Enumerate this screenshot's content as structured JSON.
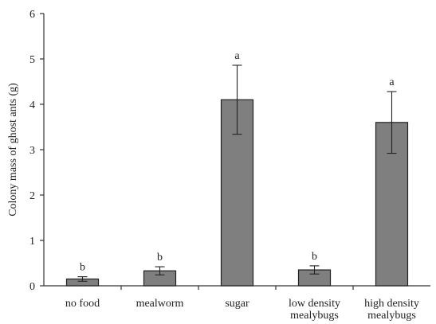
{
  "chart_data": {
    "type": "bar",
    "title": "",
    "xlabel": "",
    "ylabel": "Colony mass of ghost ants (g)",
    "ylim": [
      0,
      6
    ],
    "yticks": [
      "0",
      "1",
      "2",
      "3",
      "4",
      "5",
      "6"
    ],
    "categories": [
      [
        "no food"
      ],
      [
        "mealworm"
      ],
      [
        "sugar"
      ],
      [
        "low density",
        "mealybugs"
      ],
      [
        "high density",
        "mealybugs"
      ]
    ],
    "values": [
      0.15,
      0.33,
      4.1,
      0.35,
      3.6
    ],
    "errors": [
      0.05,
      0.09,
      0.76,
      0.09,
      0.68
    ],
    "significance": [
      "b",
      "b",
      "a",
      "b",
      "a"
    ],
    "bar_color": "#7f7f7f",
    "grid": false,
    "legend": "none"
  }
}
